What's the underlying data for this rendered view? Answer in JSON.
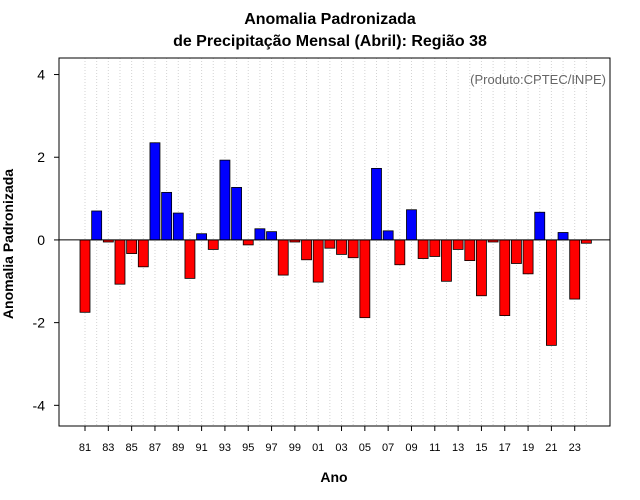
{
  "chart_data": {
    "type": "bar",
    "title": "Anomalia Padronizada",
    "subtitle": "de Precipitação Mensal (Abril): Região 38",
    "xlabel": "Ano",
    "ylabel": "Anomalia Padronizada",
    "credit": "(Produto:CPTEC/INPE)",
    "ylim": [
      -4.5,
      4.4
    ],
    "yticks": [
      -4,
      -2,
      0,
      2,
      4
    ],
    "ytick_labels": [
      "-4",
      "-2",
      "0",
      "2",
      "4"
    ],
    "grid": true,
    "positive_color": "#0000ff",
    "negative_color": "#ff0000",
    "categories": [
      "81",
      "82",
      "83",
      "84",
      "85",
      "86",
      "87",
      "88",
      "89",
      "90",
      "91",
      "92",
      "93",
      "94",
      "95",
      "96",
      "97",
      "98",
      "99",
      "00",
      "01",
      "02",
      "03",
      "04",
      "05",
      "06",
      "07",
      "08",
      "09",
      "10",
      "11",
      "12",
      "13",
      "14",
      "15",
      "16",
      "17",
      "18",
      "19",
      "20",
      "21",
      "22",
      "23",
      "24"
    ],
    "xtick_labels": [
      "81",
      "83",
      "85",
      "87",
      "89",
      "91",
      "93",
      "95",
      "97",
      "99",
      "01",
      "03",
      "05",
      "07",
      "09",
      "11",
      "13",
      "15",
      "17",
      "19",
      "21",
      "23"
    ],
    "values": [
      -1.75,
      0.7,
      -0.05,
      -1.07,
      -0.33,
      -0.65,
      2.35,
      1.15,
      0.65,
      -0.93,
      0.15,
      -0.23,
      1.93,
      1.27,
      -0.12,
      0.27,
      0.2,
      -0.85,
      -0.05,
      -0.48,
      -1.02,
      -0.2,
      -0.35,
      -0.43,
      -1.88,
      1.73,
      0.22,
      -0.6,
      0.73,
      -0.45,
      -0.4,
      -1.0,
      -0.23,
      -0.5,
      -1.35,
      -0.05,
      -1.83,
      -0.57,
      -0.82,
      0.67,
      -2.55,
      0.18,
      -1.43,
      -0.08
    ]
  }
}
